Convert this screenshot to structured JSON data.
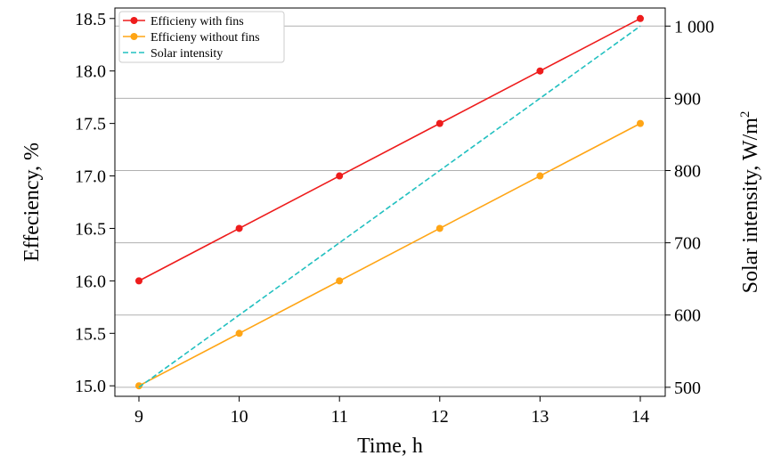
{
  "chart_data": {
    "type": "line",
    "x": [
      9,
      10,
      11,
      12,
      13,
      14
    ],
    "x_ticks": [
      "9",
      "10",
      "11",
      "12",
      "13",
      "14"
    ],
    "xlabel": "Time, h",
    "ylabel_left": "Effeciency, %",
    "ylabel_right_prefix": "Solar intensity,  W/m",
    "ylabel_right_sup": "2",
    "ylim_left": [
      14.9,
      18.6
    ],
    "ylim_right": [
      487.5,
      1025
    ],
    "yticks_left": [
      "15.0",
      "15.5",
      "16.0",
      "16.5",
      "17.0",
      "17.5",
      "18.0",
      "18.5"
    ],
    "yticks_left_values": [
      15.0,
      15.5,
      16.0,
      16.5,
      17.0,
      17.5,
      18.0,
      18.5
    ],
    "yticks_right": [
      "500",
      "600",
      "700",
      "800",
      "900",
      "1 000"
    ],
    "yticks_right_values": [
      500,
      600,
      700,
      800,
      900,
      1000
    ],
    "grid": "horizontal lines at right-axis ticks",
    "legend_position": "top-left",
    "series": [
      {
        "name": "Efficieny with fins",
        "axis": "left",
        "style": "solid-marker",
        "color": "#ee1c1c",
        "values": [
          16.0,
          16.5,
          17.0,
          17.5,
          18.0,
          18.5
        ]
      },
      {
        "name": "Efficieny without fins",
        "axis": "left",
        "style": "solid-marker",
        "color": "#ffa515",
        "values": [
          15.0,
          15.5,
          16.0,
          16.5,
          17.0,
          17.5
        ]
      },
      {
        "name": "Solar intensity",
        "axis": "right",
        "style": "dashed",
        "color": "#22c0c0",
        "values": [
          500,
          600,
          700,
          800,
          900,
          1000
        ]
      }
    ]
  }
}
